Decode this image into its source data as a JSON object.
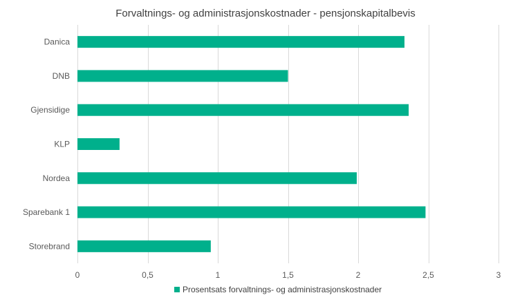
{
  "chart_data": {
    "type": "bar",
    "orientation": "horizontal",
    "title": "Forvaltnings- og administrasjonskostnader - pensjonskapitalbevis",
    "categories": [
      "Danica",
      "DNB",
      "Gjensidige",
      "KLP",
      "Nordea",
      "Sparebank 1",
      "Storebrand"
    ],
    "series": [
      {
        "name": "Prosentsats  forvaltnings- og administrasjonskostnader",
        "values": [
          2.33,
          1.5,
          2.36,
          0.3,
          1.99,
          2.48,
          0.95
        ],
        "color": "#00b08c"
      }
    ],
    "xlim": [
      0,
      3
    ],
    "x_ticks": [
      "0",
      "0,5",
      "1",
      "1,5",
      "2",
      "2,5",
      "3"
    ],
    "x_tick_values": [
      0,
      0.5,
      1,
      1.5,
      2,
      2.5,
      3
    ],
    "grid": true,
    "legend_position": "bottom"
  }
}
